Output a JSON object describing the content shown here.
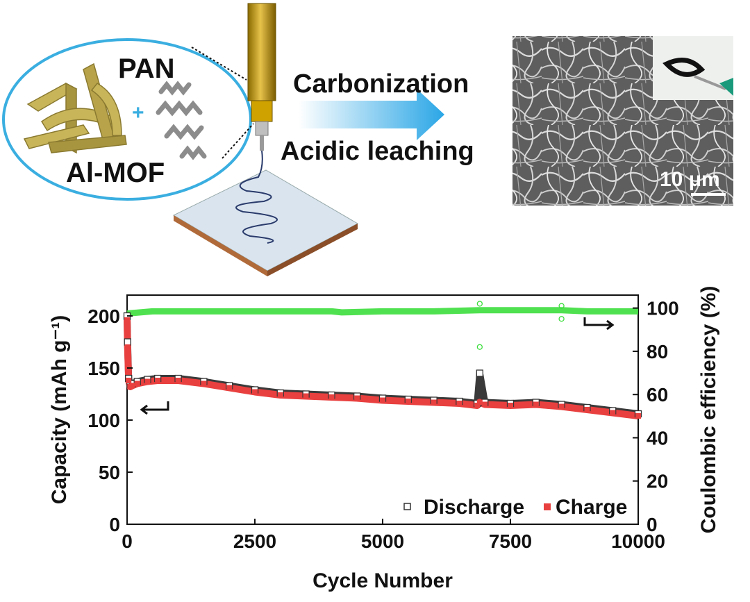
{
  "schematic": {
    "pan_label": "PAN",
    "mof_label": "Al-MOF",
    "plus": "+",
    "step1": "Carbonization",
    "step2": "Acidic leaching",
    "scale_bar": "10 μm",
    "colors": {
      "oval": "#3aaee0",
      "arrow": "#2aa6e6",
      "mof": "#c8b55a",
      "nozzle": "#d0a200"
    }
  },
  "chart_data": {
    "type": "scatter",
    "xlabel": "Cycle Number",
    "ylabel_left": "Capacity (mAh g⁻¹)",
    "ylabel_right": "Coulombic efficiency (%)",
    "xlim": [
      0,
      10000
    ],
    "ylim_left": [
      0,
      220
    ],
    "ylim_right": [
      0,
      106
    ],
    "x_ticks": [
      "0",
      "2500",
      "5000",
      "7500",
      "10000"
    ],
    "y_left_ticks": [
      "0",
      "50",
      "100",
      "150",
      "200"
    ],
    "y_right_ticks": [
      "0",
      "20",
      "40",
      "60",
      "80",
      "100"
    ],
    "legend": {
      "discharge": "Discharge",
      "charge": "Charge",
      "position": "bottom-right"
    },
    "series": [
      {
        "name": "Discharge",
        "axis": "left",
        "marker": "open-square",
        "color": "#333333",
        "x": [
          0,
          10,
          30,
          60,
          100,
          200,
          400,
          600,
          1000,
          1500,
          2000,
          2500,
          3000,
          3500,
          4000,
          4500,
          5000,
          5500,
          6000,
          6500,
          6850,
          6900,
          7000,
          7500,
          8000,
          8500,
          9000,
          9500,
          10000
        ],
        "values": [
          200,
          175,
          140,
          134,
          135,
          137,
          139,
          140,
          140,
          137,
          133,
          129,
          126,
          125,
          124,
          123,
          121,
          120,
          119,
          118,
          116,
          145,
          117,
          116,
          117,
          115,
          112,
          109,
          106
        ]
      },
      {
        "name": "Charge",
        "axis": "left",
        "marker": "filled-square",
        "color": "#e8403f",
        "x": [
          0,
          10,
          30,
          60,
          100,
          200,
          400,
          600,
          1000,
          1500,
          2000,
          2500,
          3000,
          3500,
          4000,
          4500,
          5000,
          5500,
          6000,
          6500,
          6850,
          6900,
          7000,
          7500,
          8000,
          8500,
          9000,
          9500,
          10000
        ],
        "values": [
          196,
          170,
          138,
          132,
          133,
          135,
          137,
          138,
          138,
          135,
          131,
          127,
          124,
          123,
          122,
          121,
          119,
          118,
          117,
          116,
          114,
          117,
          115,
          114,
          115,
          113,
          110,
          107,
          104
        ]
      },
      {
        "name": "Coulombic efficiency",
        "axis": "right",
        "marker": "open-circle",
        "color": "#3dde3d",
        "x": [
          0,
          500,
          1000,
          2000,
          3000,
          4000,
          4200,
          5000,
          6000,
          6900,
          7000,
          8000,
          8500,
          9000,
          10000
        ],
        "values": [
          97.5,
          98.5,
          98.5,
          98.5,
          98.5,
          98.5,
          98.0,
          98.5,
          98.5,
          99.0,
          99.0,
          99.0,
          99.0,
          98.5,
          98.5
        ],
        "outliers": [
          {
            "x": 6900,
            "y": 102
          },
          {
            "x": 6900,
            "y": 82
          },
          {
            "x": 8500,
            "y": 101
          },
          {
            "x": 8500,
            "y": 95
          }
        ]
      }
    ]
  }
}
